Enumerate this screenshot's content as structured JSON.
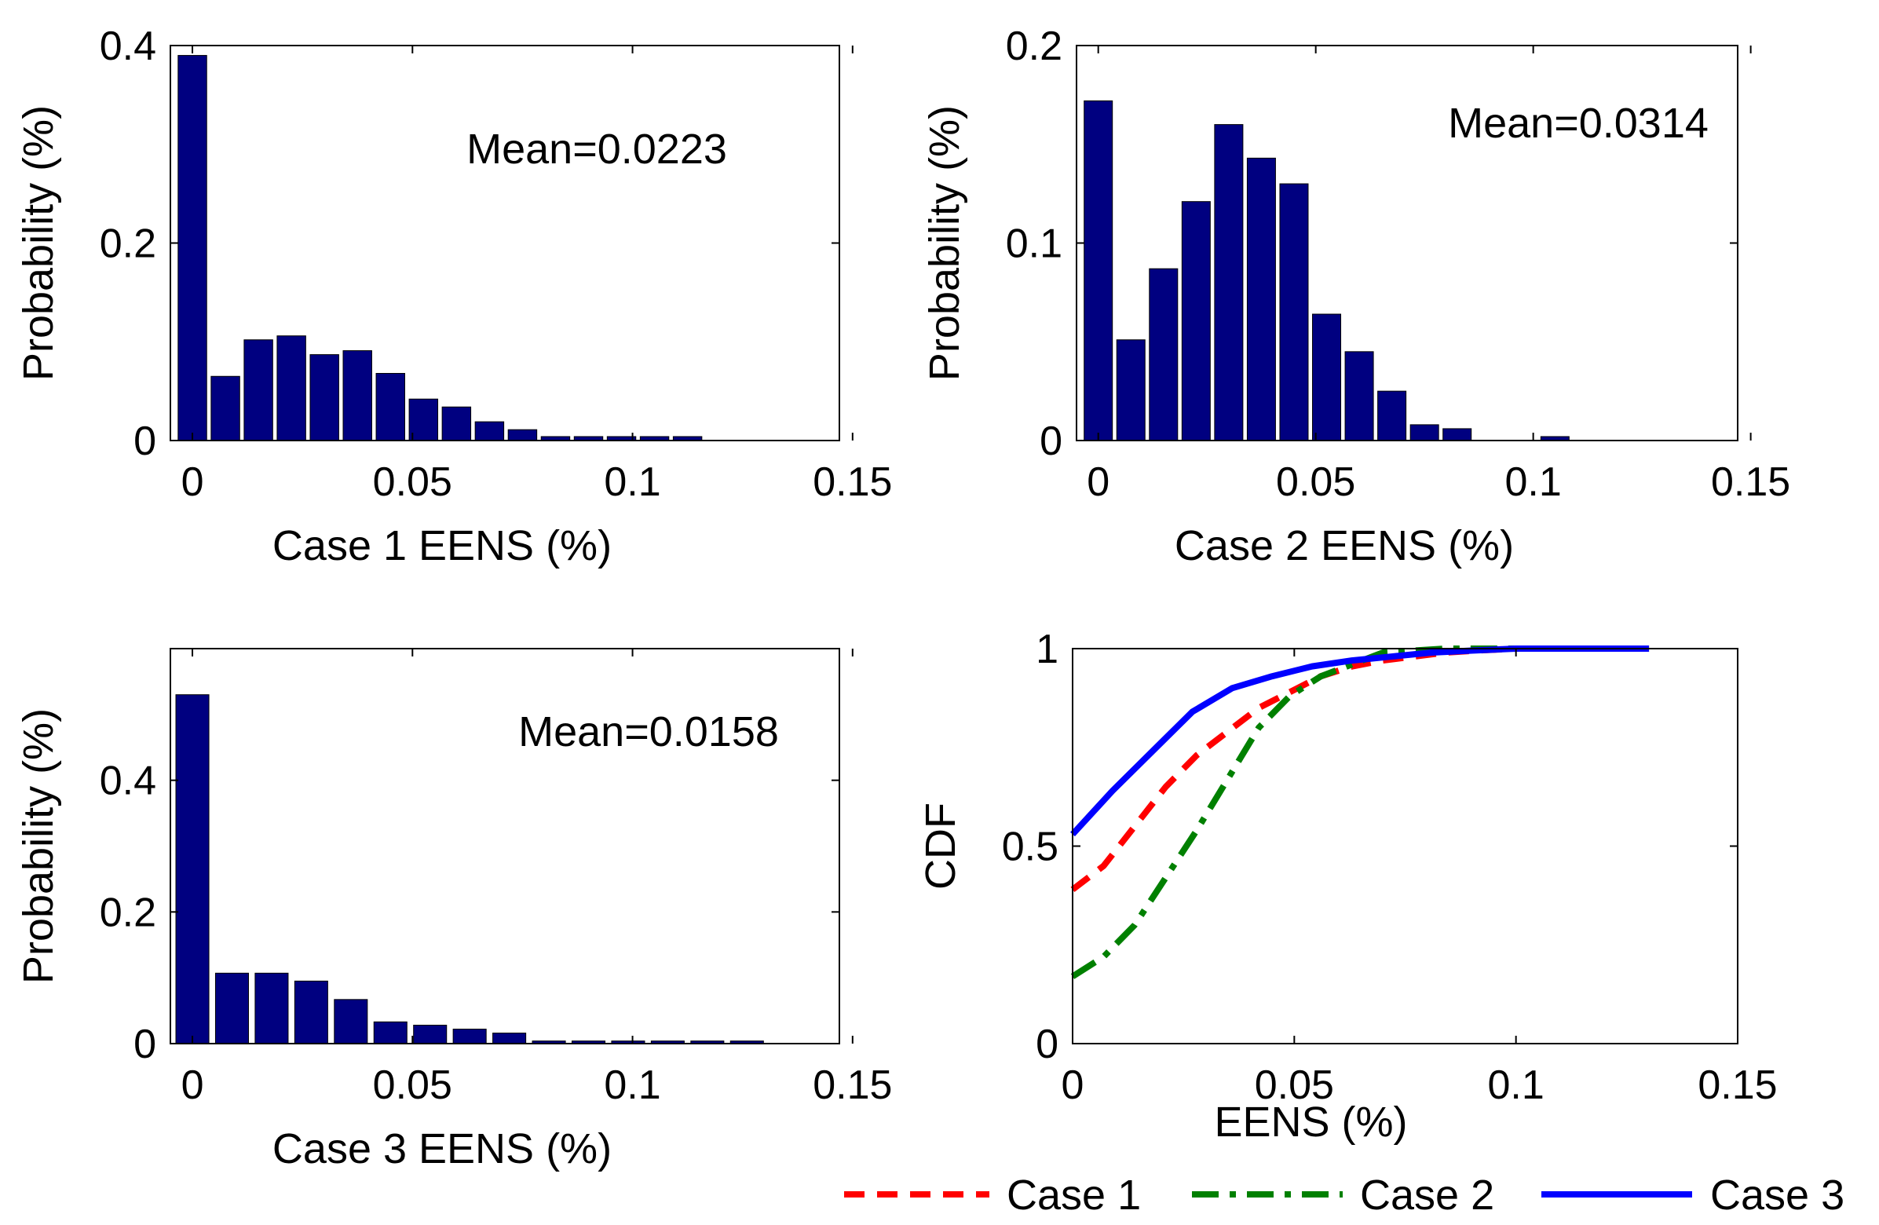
{
  "colors": {
    "bar": "#000080",
    "case1": "#ff0000",
    "case2": "#008000",
    "case3": "#0000ff"
  },
  "chart_data": [
    {
      "id": "case1",
      "type": "bar",
      "xlabel": "Case 1 EENS (%)",
      "ylabel": "Probability (%)",
      "annotation": "Mean=0.0223",
      "xlim": [
        -0.005,
        0.147
      ],
      "ylim": [
        0,
        0.4
      ],
      "xticks": [
        0,
        0.05,
        0.1,
        0.15
      ],
      "xtick_labels": [
        "0",
        "0.05",
        "0.1",
        "0.15"
      ],
      "yticks": [
        0,
        0.2,
        0.4
      ],
      "ytick_labels": [
        "0",
        "0.2",
        "0.4"
      ],
      "bar_width": 0.0065,
      "x": [
        0,
        0.0075,
        0.015,
        0.0225,
        0.03,
        0.0375,
        0.045,
        0.0525,
        0.06,
        0.0675,
        0.075,
        0.0825,
        0.09,
        0.0975,
        0.105,
        0.1125
      ],
      "values": [
        0.39,
        0.065,
        0.102,
        0.106,
        0.087,
        0.091,
        0.068,
        0.042,
        0.034,
        0.019,
        0.011,
        0.004,
        0.004,
        0.004,
        0.004,
        0.004
      ]
    },
    {
      "id": "case2",
      "type": "bar",
      "xlabel": "Case 2 EENS (%)",
      "ylabel": "Probability (%)",
      "annotation": "Mean=0.0314",
      "xlim": [
        -0.005,
        0.147
      ],
      "ylim": [
        0,
        0.2
      ],
      "xticks": [
        0,
        0.05,
        0.1,
        0.15
      ],
      "xtick_labels": [
        "0",
        "0.05",
        "0.1",
        "0.15"
      ],
      "yticks": [
        0,
        0.1,
        0.2
      ],
      "ytick_labels": [
        "0",
        "0.1",
        "0.2"
      ],
      "bar_width": 0.0065,
      "x": [
        0,
        0.0075,
        0.015,
        0.0225,
        0.03,
        0.0375,
        0.045,
        0.0525,
        0.06,
        0.0675,
        0.075,
        0.0825,
        0.105
      ],
      "values": [
        0.172,
        0.051,
        0.087,
        0.121,
        0.16,
        0.143,
        0.13,
        0.064,
        0.045,
        0.025,
        0.008,
        0.006,
        0.002
      ]
    },
    {
      "id": "case3",
      "type": "bar",
      "xlabel": "Case 3 EENS (%)",
      "ylabel": "Probability (%)",
      "annotation": "Mean=0.0158",
      "xlim": [
        -0.005,
        0.147
      ],
      "ylim": [
        0,
        0.6
      ],
      "xticks": [
        0,
        0.05,
        0.1,
        0.15
      ],
      "xtick_labels": [
        "0",
        "0.05",
        "0.1",
        "0.15"
      ],
      "yticks": [
        0,
        0.2,
        0.4
      ],
      "ytick_labels": [
        "0",
        "0.2",
        "0.4"
      ],
      "bar_width": 0.0075,
      "x": [
        0,
        0.009,
        0.018,
        0.027,
        0.036,
        0.045,
        0.054,
        0.063,
        0.072,
        0.081,
        0.09,
        0.099,
        0.108,
        0.117,
        0.126
      ],
      "values": [
        0.53,
        0.107,
        0.107,
        0.095,
        0.067,
        0.033,
        0.028,
        0.022,
        0.016,
        0.004,
        0.004,
        0.004,
        0.004,
        0.004,
        0.004
      ]
    },
    {
      "id": "cdf",
      "type": "line",
      "xlabel": "EENS (%)",
      "ylabel": "CDF",
      "xlim": [
        0,
        0.15
      ],
      "ylim": [
        0,
        1
      ],
      "xticks": [
        0,
        0.05,
        0.1,
        0.15
      ],
      "xtick_labels": [
        "0",
        "0.05",
        "0.1",
        "0.15"
      ],
      "yticks": [
        0,
        0.5,
        1
      ],
      "ytick_labels": [
        "0",
        "0.5",
        "1"
      ],
      "legend": "below",
      "series": [
        {
          "name": "Case 1",
          "style": "dashed",
          "x": [
            0,
            0.007,
            0.014,
            0.021,
            0.028,
            0.035,
            0.042,
            0.049,
            0.056,
            0.063,
            0.07,
            0.077,
            0.084,
            0.091,
            0.1,
            0.13
          ],
          "y": [
            0.39,
            0.45,
            0.55,
            0.65,
            0.73,
            0.79,
            0.85,
            0.89,
            0.93,
            0.955,
            0.97,
            0.98,
            0.99,
            0.995,
            1.0,
            1.0
          ]
        },
        {
          "name": "Case 2",
          "style": "dashdot",
          "x": [
            0,
            0.007,
            0.014,
            0.021,
            0.028,
            0.035,
            0.042,
            0.049,
            0.056,
            0.063,
            0.07,
            0.077,
            0.084,
            0.1,
            0.13
          ],
          "y": [
            0.17,
            0.22,
            0.3,
            0.42,
            0.54,
            0.67,
            0.8,
            0.88,
            0.93,
            0.96,
            0.99,
            0.995,
            1.0,
            1.0,
            1.0
          ]
        },
        {
          "name": "Case 3",
          "style": "solid",
          "x": [
            0,
            0.009,
            0.018,
            0.027,
            0.036,
            0.045,
            0.054,
            0.063,
            0.072,
            0.081,
            0.09,
            0.1,
            0.13
          ],
          "y": [
            0.53,
            0.64,
            0.74,
            0.84,
            0.9,
            0.93,
            0.955,
            0.97,
            0.98,
            0.99,
            0.995,
            1.0,
            1.0
          ]
        }
      ]
    }
  ]
}
